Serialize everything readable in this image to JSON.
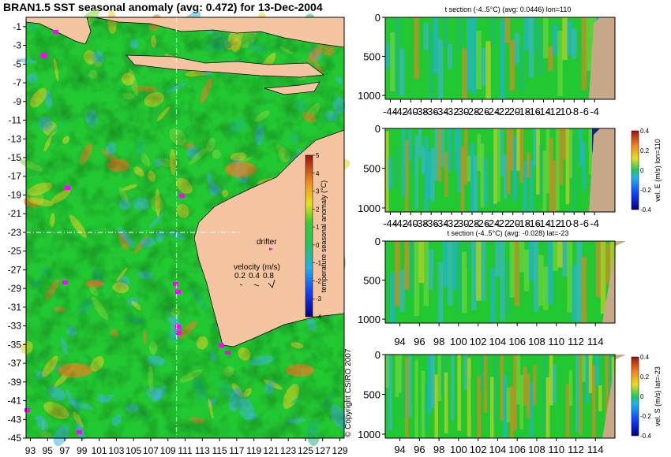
{
  "chart_data": [
    {
      "type": "heatmap",
      "title": "BRAN1.5 SST seasonal anomaly (avg: 0.472) for 13-Dec-2004",
      "x_ticks": [
        "93",
        "95",
        "97",
        "99",
        "101",
        "103",
        "105",
        "107",
        "109",
        "111",
        "113",
        "115",
        "117",
        "119",
        "121",
        "123",
        "125",
        "127",
        "129"
      ],
      "x_tick_labels": [
        "93",
        "95",
        "97",
        "99",
        "101",
        "103",
        "105",
        "107",
        "109",
        "111",
        "113",
        "115",
        "117",
        "119",
        "121",
        "123",
        "125",
        "127",
        "129"
      ],
      "y_ticks": [
        -1,
        -3,
        -5,
        -7,
        -9,
        -11,
        -13,
        -15,
        -17,
        -19,
        -21,
        -23,
        -25,
        -27,
        -29,
        -31,
        -33,
        -35,
        -37,
        -39,
        -41,
        -43,
        -45
      ],
      "xlim": [
        92.5,
        129.5
      ],
      "ylim": [
        -45,
        0
      ],
      "crosshair": {
        "lon": 110,
        "lat": -23
      },
      "colorbar": {
        "label": "temperature seasonal anomaly (°C)",
        "ticks": [
          5,
          4,
          3,
          2,
          1,
          0,
          -1,
          -2,
          -3,
          -4
        ],
        "range": [
          -4,
          5
        ]
      },
      "drifter_label": "drifter",
      "velocity_legend": {
        "label": "velocity (m/s)",
        "values": [
          "0.2",
          "0.4",
          "0.8"
        ]
      },
      "copyright": "© Copyright CSIRO 2007"
    },
    {
      "type": "heatmap",
      "title": "t section (-4..5°C) (avg: 0.0446) lon=110",
      "x_tick_labels": [
        "-44",
        "-42",
        "-40",
        "-38",
        "-36",
        "-34",
        "-32",
        "-30",
        "-28",
        "-26",
        "-24",
        "-22",
        "-20",
        "-18",
        "-16",
        "-14",
        "-12",
        "-10",
        "-8",
        "-6",
        "-4"
      ],
      "xlim": [
        -45,
        0
      ],
      "y_ticks": [
        0,
        500,
        1000
      ],
      "ylim": [
        1050,
        0
      ]
    },
    {
      "type": "heatmap",
      "title": "",
      "x_tick_labels": [
        "-44",
        "-42",
        "-40",
        "-38",
        "-36",
        "-34",
        "-32",
        "-30",
        "-28",
        "-26",
        "-24",
        "-22",
        "-20",
        "-18",
        "-16",
        "-14",
        "-12",
        "-10",
        "-8",
        "-6",
        "-4"
      ],
      "xlim": [
        -45,
        0
      ],
      "y_ticks": [
        0,
        500,
        1000
      ],
      "ylim": [
        1050,
        0
      ],
      "colorbar": {
        "label": "vel. E (m/s) lon=110",
        "ticks": [
          "0.4",
          "0.2",
          "0",
          "-0.2",
          "-0.4"
        ],
        "range": [
          -0.4,
          0.4
        ]
      }
    },
    {
      "type": "heatmap",
      "title": "t section (-4..5°C) (avg: -0.028) lat=-23",
      "x_tick_labels": [
        "94",
        "96",
        "98",
        "100",
        "102",
        "104",
        "106",
        "108",
        "110",
        "112",
        "114"
      ],
      "xlim": [
        92.5,
        116
      ],
      "y_ticks": [
        0,
        500,
        1000
      ],
      "ylim": [
        1050,
        0
      ]
    },
    {
      "type": "heatmap",
      "title": "",
      "x_tick_labels": [
        "94",
        "96",
        "98",
        "100",
        "102",
        "104",
        "106",
        "108",
        "110",
        "112",
        "114"
      ],
      "xlim": [
        92.5,
        116
      ],
      "y_ticks": [
        0,
        500,
        1000
      ],
      "ylim": [
        1050,
        0
      ],
      "colorbar": {
        "label": "vel. S (m/s) lat=-23",
        "ticks": [
          "0.4",
          "0.2",
          "0",
          "-0.2",
          "-0.4"
        ],
        "range": [
          -0.4,
          0.4
        ]
      }
    }
  ],
  "colors": {
    "land": "#f5c4a0",
    "land_section": "#c8a88a",
    "ocean_base": "#22c832",
    "warm": "#e8d020",
    "hot": "#f08020",
    "cool": "#40b4e0",
    "drifter": "#ff00ff",
    "background": "#ffffff"
  }
}
